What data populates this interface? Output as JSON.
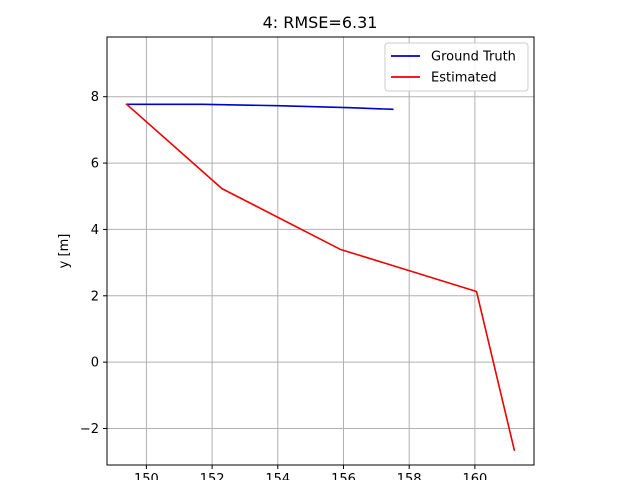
{
  "chart_data": {
    "type": "line",
    "title": "4: RMSE=6.31",
    "xlabel": "",
    "ylabel": "y [m]",
    "xlim": [
      148.8,
      161.8
    ],
    "ylim": [
      -3.1,
      9.8
    ],
    "xticks": [
      150,
      152,
      154,
      156,
      158,
      160
    ],
    "yticks": [
      -2,
      0,
      2,
      4,
      6,
      8
    ],
    "xtick_labels": [
      "150",
      "152",
      "154",
      "156",
      "158",
      "160"
    ],
    "ytick_labels": [
      "−2",
      "0",
      "2",
      "4",
      "6",
      "8"
    ],
    "grid": true,
    "legend": "top-right",
    "series": [
      {
        "name": "Ground Truth",
        "color": "#0000cc",
        "x": [
          149.4,
          151.7,
          154.0,
          156.2,
          157.5
        ],
        "y": [
          7.77,
          7.77,
          7.73,
          7.67,
          7.62
        ]
      },
      {
        "name": "Estimated",
        "color": "#ee0000",
        "x": [
          149.4,
          152.3,
          155.9,
          160.05,
          161.2
        ],
        "y": [
          7.77,
          5.23,
          3.4,
          2.13,
          -2.65
        ]
      }
    ]
  }
}
